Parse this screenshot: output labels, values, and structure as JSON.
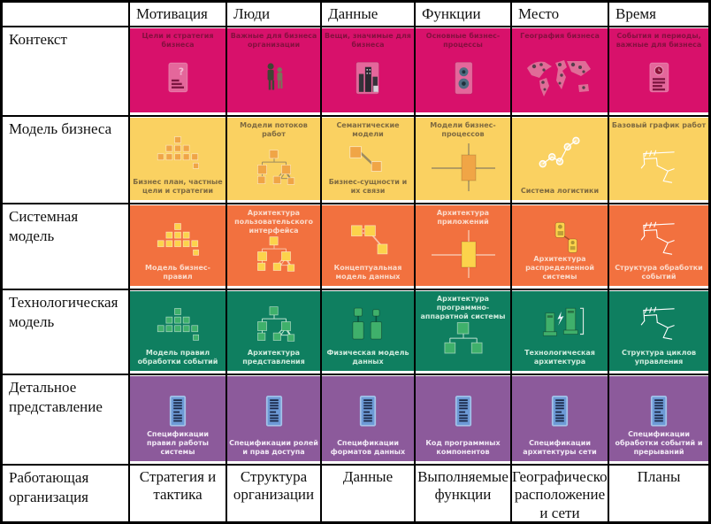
{
  "table": {
    "column_headers": [
      "",
      "Мотивация",
      "Люди",
      "Данные",
      "Функции",
      "Место",
      "Время"
    ],
    "row_headers": [
      "Контекст",
      "Модель бизнеса",
      "Системная модель",
      "Технологическая модель",
      "Детальное представление",
      "Работающая организация"
    ],
    "footer_cells": [
      "Стратегия и тактика",
      "Структура организации",
      "Данные",
      "Выполняемые функции",
      "Географическое расположение и сети",
      "Планы"
    ],
    "rows": [
      {
        "key": "context",
        "colors": {
          "bg": "#D8116B",
          "text": "#84103F",
          "icon": "#E4679B",
          "line": "#F2B4CC"
        },
        "cells": [
          {
            "label_top": "Цели и стратегия бизнеса",
            "icon": "document-question"
          },
          {
            "label_top": "Важные для бизнеса организации",
            "icon": "people"
          },
          {
            "label_top": "Вещи, значимые для бизнеса",
            "icon": "buildings"
          },
          {
            "label_top": "Основные бизнес-процессы",
            "icon": "process-gears"
          },
          {
            "label_top": "География бизнеса",
            "icon": "world-map"
          },
          {
            "label_top": "События и периоды, важные для бизнеса",
            "icon": "document-clock"
          }
        ]
      },
      {
        "key": "business-model",
        "colors": {
          "bg": "#FAD161",
          "text": "#7E6A40",
          "icon": "#F0A546",
          "line": "#9C8B60"
        },
        "cells": [
          {
            "label_bottom": "Бизнес план, частные цели и стратегии",
            "icon": "pyramid"
          },
          {
            "label_top": "Модели потоков работ",
            "icon": "workflow-tree"
          },
          {
            "label_top": "Семантические модели",
            "label_bottom": "Бизнес-сущности и их связи",
            "icon": "linked-boxes"
          },
          {
            "label_top": "Модели бизнес-процессов",
            "icon": "crosshair-box"
          },
          {
            "label_bottom": "Система логистики",
            "icon": "node-network"
          },
          {
            "label_top": "Базовый график работ",
            "icon": "sketch"
          }
        ]
      },
      {
        "key": "system-model",
        "colors": {
          "bg": "#F2713F",
          "text": "#FBDACA",
          "icon": "#FCD34B",
          "line": "#F8C3A8"
        },
        "cells": [
          {
            "label_bottom": "Модель бизнес-правил",
            "icon": "pyramid"
          },
          {
            "label_top": "Архитектура пользовательского интерфейса",
            "icon": "workflow-tree"
          },
          {
            "label_bottom": "Концептуальная модель данных",
            "icon": "linked-boxes-3"
          },
          {
            "label_top": "Архитектура приложений",
            "icon": "crosshair-box"
          },
          {
            "label_bottom": "Архитектура распределенной системы",
            "icon": "devices"
          },
          {
            "label_bottom": "Структура обработки событий",
            "icon": "sketch"
          }
        ]
      },
      {
        "key": "technology-model",
        "colors": {
          "bg": "#0F7F60",
          "text": "#CFEBDD",
          "icon": "#3FB06B",
          "line": "#BFE3D0"
        },
        "cells": [
          {
            "label_bottom": "Модель правил обработки событий",
            "icon": "pyramid"
          },
          {
            "label_bottom": "Архитектура представления",
            "icon": "workflow-tree"
          },
          {
            "label_bottom": "Физическая модель данных",
            "icon": "keys"
          },
          {
            "label_top": "Архитектура программно-аппаратной системы",
            "icon": "tree-small"
          },
          {
            "label_bottom": "Технологическая архитектура",
            "icon": "computers"
          },
          {
            "label_bottom": "Структура циклов управления",
            "icon": "sketch"
          }
        ]
      },
      {
        "key": "detailed-view",
        "colors": {
          "bg": "#8C5A9B",
          "text": "#F2EAF6",
          "icon": "#6D9AD6",
          "line": "#E8DCEE"
        },
        "cells": [
          {
            "label_bottom": "Спецификации правил работы системы",
            "icon": "document-spec"
          },
          {
            "label_bottom": "Спецификации ролей и прав доступа",
            "icon": "document-spec"
          },
          {
            "label_bottom": "Спецификации форматов данных",
            "icon": "document-spec"
          },
          {
            "label_bottom": "Код программных компонентов",
            "icon": "document-spec"
          },
          {
            "label_bottom": "Спецификации архитектуры сети",
            "icon": "document-spec"
          },
          {
            "label_bottom": "Спецификации обработки событий и прерываний",
            "icon": "document-spec"
          }
        ]
      }
    ]
  }
}
